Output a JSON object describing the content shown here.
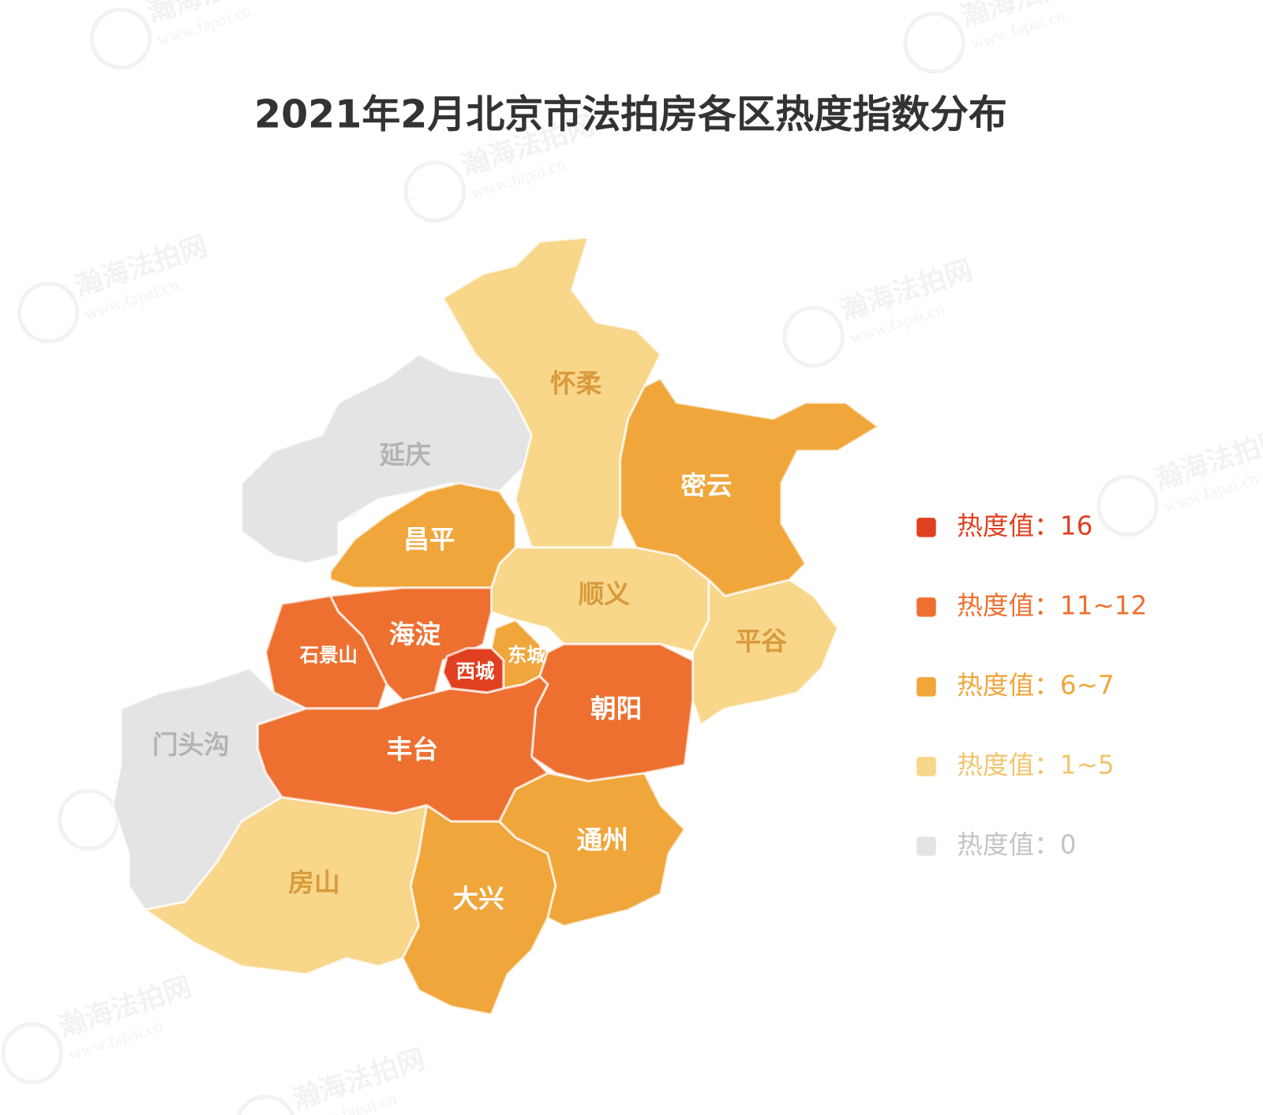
{
  "header": {
    "title": "2021年2月北京市法拍房各区热度指数分布"
  },
  "watermark": {
    "name": "瀚海法拍网",
    "url": "www.fapai.cn"
  },
  "legend": {
    "items": [
      {
        "label": "热度值：16",
        "color": "#e0401f",
        "districts": [
          "西城"
        ]
      },
      {
        "label": "热度值：11~12",
        "color": "#ee7030",
        "districts": [
          "海淀",
          "石景山",
          "朝阳",
          "丰台"
        ]
      },
      {
        "label": "热度值：6~7",
        "color": "#f0a63a",
        "districts": [
          "密云",
          "昌平",
          "东城",
          "大兴",
          "通州"
        ]
      },
      {
        "label": "热度值：1~5",
        "color": "#f8d68a",
        "districts": [
          "怀柔",
          "顺义",
          "平谷",
          "房山"
        ]
      },
      {
        "label": "热度值：0",
        "color": "#e4e4e4",
        "districts": [
          "延庆",
          "门头沟"
        ]
      }
    ]
  }
}
